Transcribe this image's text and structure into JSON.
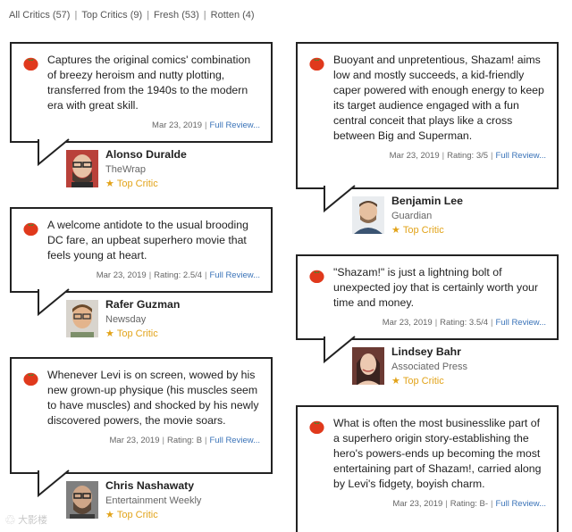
{
  "filters": [
    {
      "label": "All Critics",
      "count": "(57)"
    },
    {
      "label": "Top Critics",
      "count": "(9)"
    },
    {
      "label": "Fresh",
      "count": "(53)"
    },
    {
      "label": "Rotten",
      "count": "(4)"
    }
  ],
  "colors": {
    "tomato": "#e0391c",
    "link": "#3a73b8",
    "star": "#e2a319"
  },
  "left": [
    {
      "quote": "Captures the original comics' combination of breezy heroism and nutty plotting, transferred from the 1940s to the modern era with great skill.",
      "date": "Mar 23, 2019",
      "rating": "",
      "link": "Full Review...",
      "critic": "Alonso Duralde",
      "publication": "TheWrap",
      "top_critic": "Top Critic"
    },
    {
      "quote": "A welcome antidote to the usual brooding DC fare, an upbeat superhero movie that feels young at heart.",
      "date": "Mar 23, 2019",
      "rating": "Rating: 2.5/4",
      "link": "Full Review...",
      "critic": "Rafer Guzman",
      "publication": "Newsday",
      "top_critic": "Top Critic"
    },
    {
      "quote": "Whenever Levi is on screen, wowed by his new grown-up physique (his muscles seem to have muscles) and shocked by his newly discovered powers, the movie soars.",
      "date": "Mar 23, 2019",
      "rating": "Rating: B",
      "link": "Full Review...",
      "critic": "Chris Nashawaty",
      "publication": "Entertainment Weekly",
      "top_critic": "Top Critic"
    }
  ],
  "right": [
    {
      "quote": "Buoyant and unpretentious, Shazam! aims low and mostly succeeds, a kid-friendly caper powered with enough energy to keep its target audience engaged with a fun central conceit that plays like a cross between Big and Superman.",
      "date": "Mar 23, 2019",
      "rating": "Rating: 3/5",
      "link": "Full Review...",
      "critic": "Benjamin Lee",
      "publication": "Guardian",
      "top_critic": "Top Critic"
    },
    {
      "quote": "\"Shazam!\" is just a lightning bolt of unexpected joy that is certainly worth your time and money.",
      "date": "Mar 23, 2019",
      "rating": "Rating: 3.5/4",
      "link": "Full Review...",
      "critic": "Lindsey Bahr",
      "publication": "Associated Press",
      "top_critic": "Top Critic"
    },
    {
      "quote": "What is often the most businesslike part of a superhero origin story-establishing the hero's powers-ends up becoming the most entertaining part of Shazam!, carried along by Levi's fidgety, boyish charm.",
      "date": "Mar 23, 2019",
      "rating": "Rating: B-",
      "link": "Full Review..."
    }
  ],
  "watermark": "大影楼"
}
